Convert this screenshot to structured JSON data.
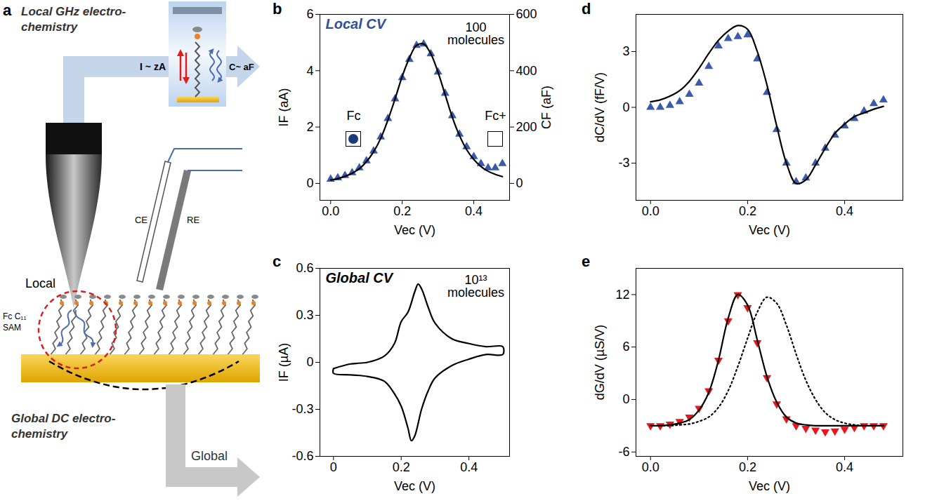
{
  "diagram": {
    "panel": "a",
    "title_top": "Local GHz electro-chemistry",
    "title_bottom": "Global DC electro-chemistry",
    "current": "I ~ zA",
    "capacitance": "C~ aF",
    "counter_electrode": "CE",
    "reference_electrode": "RE",
    "local": "Local",
    "global": "Global",
    "sam": "Fc C₁₁ SAM"
  },
  "chart_data": [
    {
      "panel": "b",
      "type": "line",
      "x_label": "Vec (V)",
      "y_label": "IF (aA)",
      "y2_label": "CF (aF)",
      "annotations": [
        {
          "text": "Local CV",
          "color": "#2e4f9e"
        },
        {
          "text": "100 molecules",
          "color": "#000000"
        },
        {
          "text": "Fc",
          "color": "#000000"
        },
        {
          "text": "Fc+",
          "color": "#000000"
        }
      ],
      "xlim": [
        -0.03,
        0.5
      ],
      "xticks": [
        {
          "value": 0,
          "label": "0.0"
        },
        0.2,
        0.4
      ],
      "ylim": [
        -0.6,
        6
      ],
      "yticks": [
        0,
        2,
        4,
        6
      ],
      "y2lim": [
        -60,
        600
      ],
      "y2ticks": [
        0,
        200,
        400,
        600
      ],
      "x": [
        0,
        0.02,
        0.04,
        0.06,
        0.08,
        0.1,
        0.12,
        0.14,
        0.16,
        0.18,
        0.2,
        0.22,
        0.24,
        0.26,
        0.28,
        0.3,
        0.32,
        0.34,
        0.36,
        0.38,
        0.4,
        0.42,
        0.44,
        0.46,
        0.48
      ],
      "series": [
        {
          "type": "scatter",
          "marker": "triangle",
          "color": "#3a5bab",
          "values": [
            0.15,
            0.2,
            0.28,
            0.38,
            0.55,
            0.8,
            1.15,
            1.65,
            2.3,
            3.0,
            3.75,
            4.4,
            4.9,
            4.95,
            4.6,
            3.95,
            3.2,
            2.4,
            1.75,
            1.3,
            0.95,
            0.7,
            0.55,
            0.55,
            0.7
          ]
        },
        {
          "type": "line",
          "line_style": "solid",
          "color": "#000000",
          "values": [
            0.12,
            0.17,
            0.25,
            0.36,
            0.52,
            0.77,
            1.12,
            1.6,
            2.25,
            3.0,
            3.8,
            4.45,
            4.9,
            4.95,
            4.6,
            3.95,
            3.15,
            2.35,
            1.7,
            1.2,
            0.85,
            0.6,
            0.43,
            0.32,
            0.24
          ]
        }
      ]
    },
    {
      "panel": "c",
      "type": "line",
      "x_label": "Vec (V)",
      "y_label": "IF (µA)",
      "annotations": [
        {
          "text": "Global CV",
          "color": "#000000"
        },
        {
          "text": "10¹³ molecules",
          "color": "#000000"
        }
      ],
      "xlim": [
        -0.04,
        0.52
      ],
      "xticks": [
        0,
        0.2,
        0.4
      ],
      "ylim": [
        -0.6,
        0.6
      ],
      "yticks": [
        -0.6,
        -0.3,
        0,
        0.3,
        0.6
      ],
      "series": [
        {
          "type": "line",
          "line_style": "solid",
          "color": "#000000",
          "x": [
            0,
            0.05,
            0.1,
            0.15,
            0.18,
            0.2,
            0.22,
            0.24,
            0.25,
            0.26,
            0.28,
            0.3,
            0.35,
            0.4,
            0.45,
            0.5,
            0.5,
            0.45,
            0.4,
            0.35,
            0.3,
            0.28,
            0.26,
            0.24,
            0.23,
            0.22,
            0.2,
            0.18,
            0.15,
            0.1,
            0.05,
            0,
            0
          ],
          "values": [
            -0.04,
            -0.01,
            0.0,
            0.04,
            0.12,
            0.26,
            0.32,
            0.45,
            0.5,
            0.47,
            0.35,
            0.25,
            0.15,
            0.12,
            0.1,
            0.1,
            0.05,
            0.05,
            0.02,
            -0.02,
            -0.1,
            -0.18,
            -0.3,
            -0.47,
            -0.5,
            -0.42,
            -0.28,
            -0.2,
            -0.12,
            -0.09,
            -0.08,
            -0.07,
            -0.04
          ]
        }
      ]
    },
    {
      "panel": "d",
      "type": "line",
      "x_label": "Vec (V)",
      "y_label": "dC/dV (fF/V)",
      "xlim": [
        -0.03,
        0.52
      ],
      "xticks": [
        {
          "value": 0,
          "label": "0.0"
        },
        0.2,
        0.4
      ],
      "ylim": [
        -5,
        5
      ],
      "yticks": [
        -3,
        0,
        3
      ],
      "x": [
        0,
        0.02,
        0.04,
        0.06,
        0.08,
        0.1,
        0.12,
        0.14,
        0.16,
        0.18,
        0.2,
        0.22,
        0.24,
        0.26,
        0.28,
        0.3,
        0.32,
        0.34,
        0.36,
        0.38,
        0.4,
        0.42,
        0.44,
        0.46,
        0.48
      ],
      "series": [
        {
          "type": "scatter",
          "marker": "triangle",
          "color": "#3a5bab",
          "values": [
            0.0,
            0.0,
            0.1,
            0.3,
            0.7,
            1.3,
            2.2,
            3.3,
            3.7,
            3.8,
            3.9,
            2.6,
            0.8,
            -1.2,
            -3.0,
            -4.0,
            -3.8,
            -3.0,
            -2.2,
            -1.5,
            -1.0,
            -0.6,
            -0.2,
            0.2,
            0.4
          ]
        },
        {
          "type": "line",
          "line_style": "solid",
          "color": "#000000",
          "values": [
            0.3,
            0.4,
            0.6,
            0.9,
            1.4,
            2.1,
            2.9,
            3.6,
            4.1,
            4.4,
            4.2,
            3.0,
            1.2,
            -1.0,
            -3.0,
            -4.1,
            -3.9,
            -3.1,
            -2.2,
            -1.4,
            -0.9,
            -0.5,
            -0.3,
            -0.1,
            0.05
          ]
        }
      ]
    },
    {
      "panel": "e",
      "type": "line",
      "x_label": "Vec (V)",
      "y_label": "dG/dV (µS/V)",
      "xlim": [
        -0.03,
        0.52
      ],
      "xticks": [
        {
          "value": 0,
          "label": "0.0"
        },
        0.2,
        0.4
      ],
      "ylim": [
        -6.5,
        15
      ],
      "yticks": [
        -6,
        0,
        6,
        12
      ],
      "x": [
        0,
        0.02,
        0.04,
        0.06,
        0.08,
        0.1,
        0.12,
        0.14,
        0.16,
        0.18,
        0.2,
        0.22,
        0.24,
        0.26,
        0.28,
        0.3,
        0.32,
        0.34,
        0.36,
        0.38,
        0.4,
        0.42,
        0.44,
        0.46,
        0.48
      ],
      "series": [
        {
          "type": "scatter",
          "marker": "triangle-down",
          "color": "#e8161c",
          "values": [
            -3.0,
            -3.0,
            -2.8,
            -2.5,
            -2.0,
            -1.0,
            1.0,
            4.5,
            9.0,
            12.0,
            10.5,
            6.5,
            2.5,
            -0.5,
            -2.2,
            -3.0,
            -3.3,
            -3.5,
            -3.7,
            -3.6,
            -3.4,
            -3.2,
            -3.0,
            -3.0,
            -3.0
          ]
        },
        {
          "type": "line",
          "line_style": "solid",
          "color": "#000000",
          "values": [
            -3.0,
            -3.0,
            -2.9,
            -2.7,
            -2.3,
            -1.2,
            0.8,
            4.5,
            9.3,
            12.0,
            10.8,
            6.8,
            2.6,
            -0.3,
            -2.0,
            -2.7,
            -2.9,
            -3.0,
            -3.0,
            -3.0,
            -3.0,
            -3.0,
            -3.0,
            -3.0,
            -3.0
          ]
        },
        {
          "type": "line",
          "line_style": "dotted",
          "color": "#000000",
          "values": [
            -3.0,
            -3.0,
            -3.0,
            -2.9,
            -2.8,
            -2.5,
            -2.0,
            -0.9,
            1.0,
            3.8,
            7.0,
            10.0,
            11.7,
            11.0,
            8.5,
            5.2,
            2.2,
            0.0,
            -1.5,
            -2.3,
            -2.7,
            -2.9,
            -3.0,
            -3.0,
            -3.0
          ]
        }
      ]
    }
  ]
}
